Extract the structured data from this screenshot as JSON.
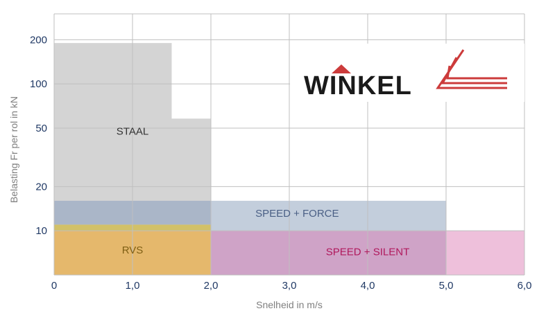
{
  "chart_data": {
    "type": "area",
    "xlabel": "Snelheid in m/s",
    "ylabel": "Belasting Fr per rol in kN",
    "xlim": [
      0,
      6
    ],
    "ylim": [
      5,
      300
    ],
    "y_scale": "log",
    "grid": true,
    "x_ticks": [
      "0",
      "1,0",
      "2,0",
      "3,0",
      "4,0",
      "5,0",
      "6,0"
    ],
    "x_tick_values": [
      0,
      1,
      2,
      3,
      4,
      5,
      6
    ],
    "y_ticks": [
      "10",
      "20",
      "50",
      "100",
      "200"
    ],
    "y_tick_values": [
      10,
      20,
      50,
      100,
      200
    ],
    "regions": [
      {
        "name": "STAAL",
        "color": "#d4d4d4",
        "text_color": "#333333",
        "polygon": [
          [
            0,
            5
          ],
          [
            0,
            190
          ],
          [
            1.5,
            190
          ],
          [
            1.5,
            58
          ],
          [
            2,
            58
          ],
          [
            2,
            5
          ]
        ],
        "label_at": [
          1,
          47
        ]
      },
      {
        "name": "SPEED +  FORCE",
        "color": "#c3cedc",
        "text_color": "#4a5f85",
        "polygon": [
          [
            2,
            10
          ],
          [
            2,
            16
          ],
          [
            5,
            16
          ],
          [
            5,
            10
          ]
        ],
        "label_at": [
          3.1,
          13
        ]
      },
      {
        "name": "",
        "color": "#aab6c8",
        "text_color": "#333333",
        "polygon": [
          [
            0,
            11
          ],
          [
            0,
            16
          ],
          [
            2,
            16
          ],
          [
            2,
            11
          ]
        ]
      },
      {
        "name": "",
        "color": "#d2c168",
        "text_color": "#333333",
        "polygon": [
          [
            0,
            10
          ],
          [
            0,
            11
          ],
          [
            2,
            11
          ],
          [
            2,
            10
          ]
        ]
      },
      {
        "name": "RVS",
        "color": "#e5b86c",
        "text_color": "#7f5f14",
        "polygon": [
          [
            0,
            5
          ],
          [
            0,
            10
          ],
          [
            2,
            10
          ],
          [
            2,
            5
          ]
        ],
        "label_at": [
          1,
          7.3
        ]
      },
      {
        "name": "SPEED +  SILENT",
        "color": "#cfa3c7",
        "text_color": "#b0185c",
        "polygon": [
          [
            2,
            5
          ],
          [
            2,
            10
          ],
          [
            5,
            10
          ],
          [
            5,
            5
          ]
        ],
        "label_at": [
          4,
          7.1
        ]
      },
      {
        "name": "",
        "color": "#eec0db",
        "text_color": "#333333",
        "polygon": [
          [
            5,
            5
          ],
          [
            5,
            10
          ],
          [
            6,
            10
          ],
          [
            6,
            5
          ]
        ]
      }
    ]
  },
  "logo": {
    "text": "WINKEL",
    "color": "#1a1a1a",
    "accent": "#cc3b3b"
  }
}
